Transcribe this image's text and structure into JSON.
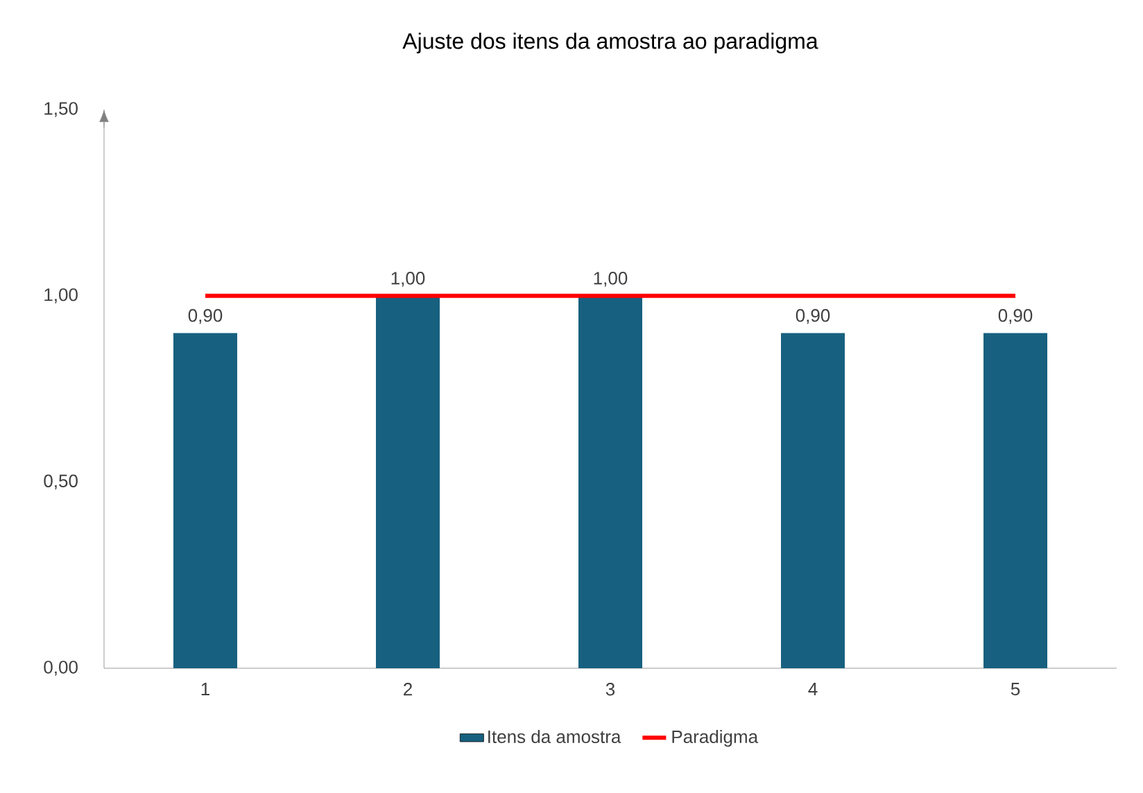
{
  "chart_data": {
    "type": "bar",
    "title": "Ajuste dos itens da amostra ao paradigma",
    "categories": [
      "1",
      "2",
      "3",
      "4",
      "5"
    ],
    "series": [
      {
        "name": "Itens da amostra",
        "color": "#17607f",
        "values": [
          0.9,
          1.0,
          1.0,
          0.9,
          0.9
        ],
        "value_labels": [
          "0,90",
          "1,00",
          "1,00",
          "0,90",
          "0,90"
        ]
      },
      {
        "name": "Paradigma",
        "type": "line",
        "color": "#ff0000",
        "values": [
          1.0,
          1.0,
          1.0,
          1.0,
          1.0
        ]
      }
    ],
    "ylim": [
      0,
      1.5
    ],
    "yticks": [
      {
        "value": 0,
        "label": "0,00"
      },
      {
        "value": 0.5,
        "label": "0,50"
      },
      {
        "value": 1.0,
        "label": "1,00"
      },
      {
        "value": 1.5,
        "label": "1,50"
      }
    ],
    "grid": false,
    "legend": "bottom",
    "marker": "none"
  }
}
